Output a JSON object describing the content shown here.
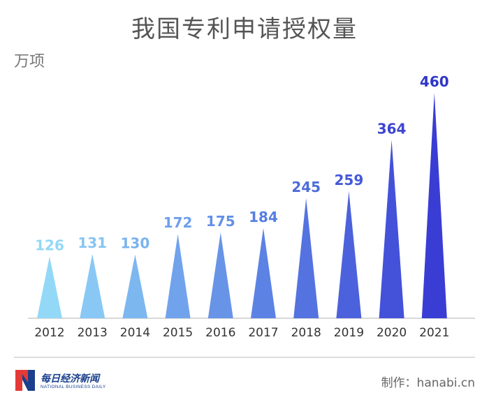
{
  "chart_data": {
    "type": "bar",
    "title": "我国专利申请授权量",
    "ylabel": "万项",
    "xlabel": "",
    "categories": [
      "2012",
      "2013",
      "2014",
      "2015",
      "2016",
      "2017",
      "2018",
      "2019",
      "2020",
      "2021"
    ],
    "values": [
      126,
      131,
      130,
      172,
      175,
      184,
      245,
      259,
      364,
      460
    ],
    "ylim": [
      0,
      460
    ],
    "grid": false,
    "legend": "none",
    "colors": [
      "#93d8f7",
      "#89c8f4",
      "#7db7f0",
      "#71a3ec",
      "#6894e8",
      "#5c82e4",
      "#5473e0",
      "#4c62dc",
      "#4452d9",
      "#3a3dd4"
    ],
    "label_colors": [
      "#93d8f7",
      "#86c4f1",
      "#7ab3ee",
      "#6ea0ea",
      "#6290e6",
      "#567fe2",
      "#4d6cdc",
      "#4559d8",
      "#3d45d1",
      "#2f36c5"
    ]
  },
  "footer": {
    "logo_cn": "每日经济新闻",
    "logo_en": "NATIONAL BUSINESS DAILY",
    "logo_colors": [
      "#e53935",
      "#1a3f8c"
    ],
    "credit": "制作：hanabi.cn"
  }
}
